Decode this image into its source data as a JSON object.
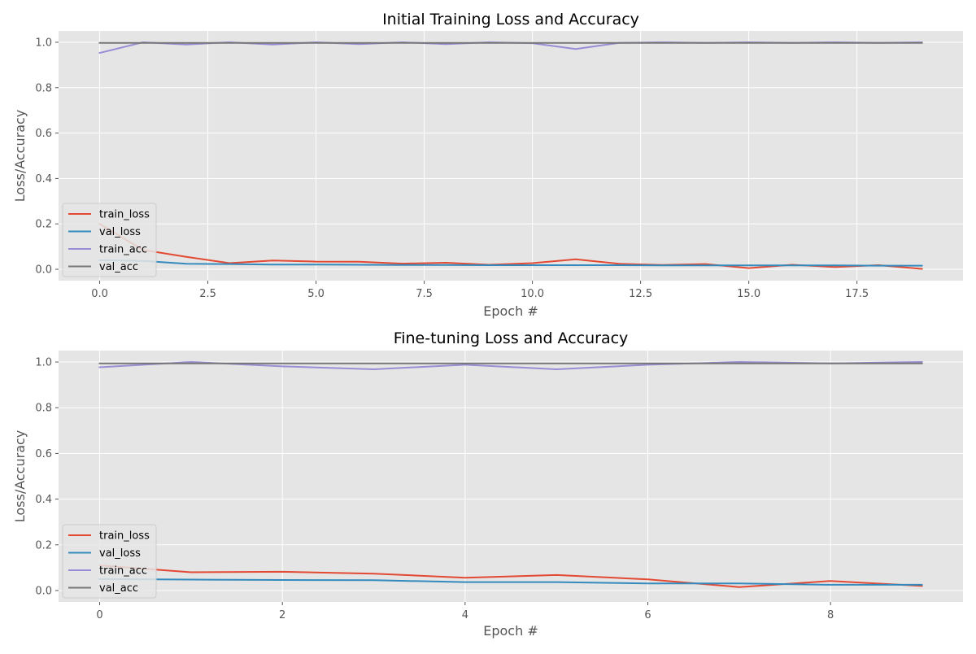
{
  "chart_data": [
    {
      "type": "line",
      "title": "Initial Training Loss and Accuracy",
      "xlabel": "Epoch #",
      "ylabel": "Loss/Accuracy",
      "xlim": [
        -0.95,
        19.95
      ],
      "ylim": [
        -0.05,
        1.05
      ],
      "xticks": [
        0.0,
        2.5,
        5.0,
        7.5,
        10.0,
        12.5,
        15.0,
        17.5
      ],
      "xtick_labels": [
        "0.0",
        "2.5",
        "5.0",
        "7.5",
        "10.0",
        "12.5",
        "15.0",
        "17.5"
      ],
      "yticks": [
        0.0,
        0.2,
        0.4,
        0.6,
        0.8,
        1.0
      ],
      "ytick_labels": [
        "0.0",
        "0.2",
        "0.4",
        "0.6",
        "0.8",
        "1.0"
      ],
      "grid": true,
      "legend_position": "lower-left",
      "x": [
        0,
        1,
        2,
        3,
        4,
        5,
        6,
        7,
        8,
        9,
        10,
        11,
        12,
        13,
        14,
        15,
        16,
        17,
        18,
        19
      ],
      "series": [
        {
          "name": "train_loss",
          "color": "#E24A33",
          "values": [
            0.2,
            0.085,
            0.055,
            0.027,
            0.039,
            0.034,
            0.033,
            0.025,
            0.029,
            0.02,
            0.027,
            0.044,
            0.024,
            0.019,
            0.023,
            0.005,
            0.02,
            0.01,
            0.018,
            0.002
          ]
        },
        {
          "name": "val_loss",
          "color": "#348ABD",
          "values": [
            0.04,
            0.037,
            0.024,
            0.023,
            0.021,
            0.021,
            0.02,
            0.019,
            0.019,
            0.018,
            0.018,
            0.018,
            0.018,
            0.017,
            0.017,
            0.017,
            0.017,
            0.017,
            0.016,
            0.016
          ]
        },
        {
          "name": "train_acc",
          "color": "#988ED5",
          "values": [
            0.953,
            1.0,
            0.99,
            1.0,
            0.99,
            1.0,
            0.992,
            1.0,
            0.992,
            1.0,
            0.996,
            0.97,
            0.997,
            1.0,
            0.997,
            1.0,
            0.997,
            1.0,
            0.997,
            1.0
          ]
        },
        {
          "name": "val_acc",
          "color": "#777777",
          "values": [
            0.997,
            0.997,
            0.997,
            0.997,
            0.997,
            0.997,
            0.997,
            0.997,
            0.997,
            0.997,
            0.997,
            0.997,
            0.997,
            0.997,
            0.997,
            0.997,
            0.997,
            0.997,
            0.997,
            0.997
          ]
        }
      ]
    },
    {
      "type": "line",
      "title": "Fine-tuning Loss and Accuracy",
      "xlabel": "Epoch #",
      "ylabel": "Loss/Accuracy",
      "xlim": [
        -0.45,
        9.45
      ],
      "ylim": [
        -0.05,
        1.05
      ],
      "xticks": [
        0,
        2,
        4,
        6,
        8
      ],
      "xtick_labels": [
        "0",
        "2",
        "4",
        "6",
        "8"
      ],
      "yticks": [
        0.0,
        0.2,
        0.4,
        0.6,
        0.8,
        1.0
      ],
      "ytick_labels": [
        "0.0",
        "0.2",
        "0.4",
        "0.6",
        "0.8",
        "1.0"
      ],
      "grid": true,
      "legend_position": "lower-left",
      "x": [
        0,
        1,
        2,
        3,
        4,
        5,
        6,
        7,
        8,
        9
      ],
      "series": [
        {
          "name": "train_loss",
          "color": "#E24A33",
          "values": [
            0.11,
            0.08,
            0.082,
            0.074,
            0.056,
            0.068,
            0.049,
            0.015,
            0.042,
            0.02
          ]
        },
        {
          "name": "val_loss",
          "color": "#348ABD",
          "values": [
            0.05,
            0.048,
            0.046,
            0.045,
            0.037,
            0.037,
            0.031,
            0.031,
            0.025,
            0.025
          ]
        },
        {
          "name": "train_acc",
          "color": "#988ED5",
          "values": [
            0.977,
            1.0,
            0.981,
            0.968,
            0.988,
            0.968,
            0.988,
            1.0,
            0.994,
            1.0
          ]
        },
        {
          "name": "val_acc",
          "color": "#777777",
          "values": [
            0.994,
            0.994,
            0.994,
            0.994,
            0.994,
            0.994,
            0.994,
            0.994,
            0.994,
            0.994
          ]
        }
      ]
    }
  ]
}
